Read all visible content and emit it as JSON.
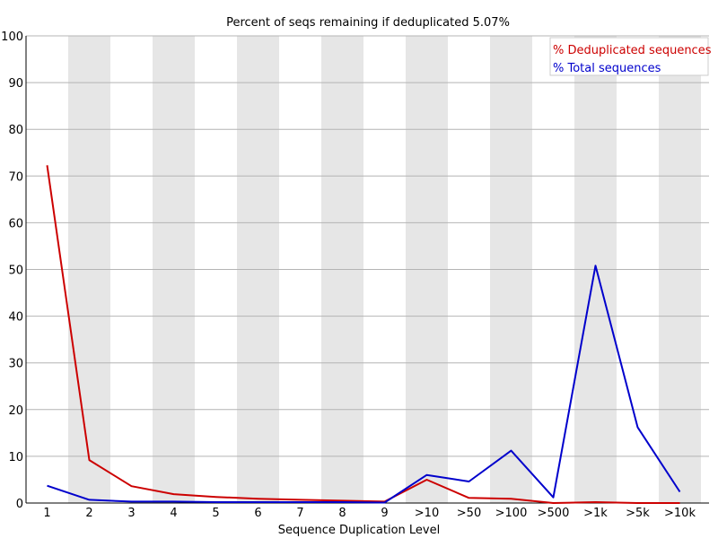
{
  "chart_data": {
    "type": "line",
    "title": "Percent of seqs remaining if deduplicated 5.07%",
    "xlabel": "Sequence Duplication Level",
    "ylabel": "",
    "ylim": [
      0,
      100
    ],
    "yticks": [
      0,
      10,
      20,
      30,
      40,
      50,
      60,
      70,
      80,
      90,
      100
    ],
    "categories": [
      "1",
      "2",
      "3",
      "4",
      "5",
      "6",
      "7",
      "8",
      "9",
      ">10",
      ">50",
      ">100",
      ">500",
      ">1k",
      ">5k",
      ">10k"
    ],
    "grid": true,
    "alternating_column_bands": true,
    "legend_position": "top-right",
    "series": [
      {
        "name": "% Deduplicated sequences",
        "color": "#cc0000",
        "values": [
          72.3,
          9.2,
          3.6,
          1.9,
          1.3,
          0.9,
          0.7,
          0.5,
          0.3,
          5.0,
          1.1,
          0.9,
          0.0,
          0.2,
          0.0,
          0.0
        ]
      },
      {
        "name": "% Total sequences",
        "color": "#0000cc",
        "values": [
          3.7,
          0.7,
          0.3,
          0.3,
          0.2,
          0.2,
          0.2,
          0.2,
          0.1,
          6.0,
          4.6,
          11.2,
          1.2,
          50.8,
          16.2,
          2.4
        ]
      }
    ]
  }
}
